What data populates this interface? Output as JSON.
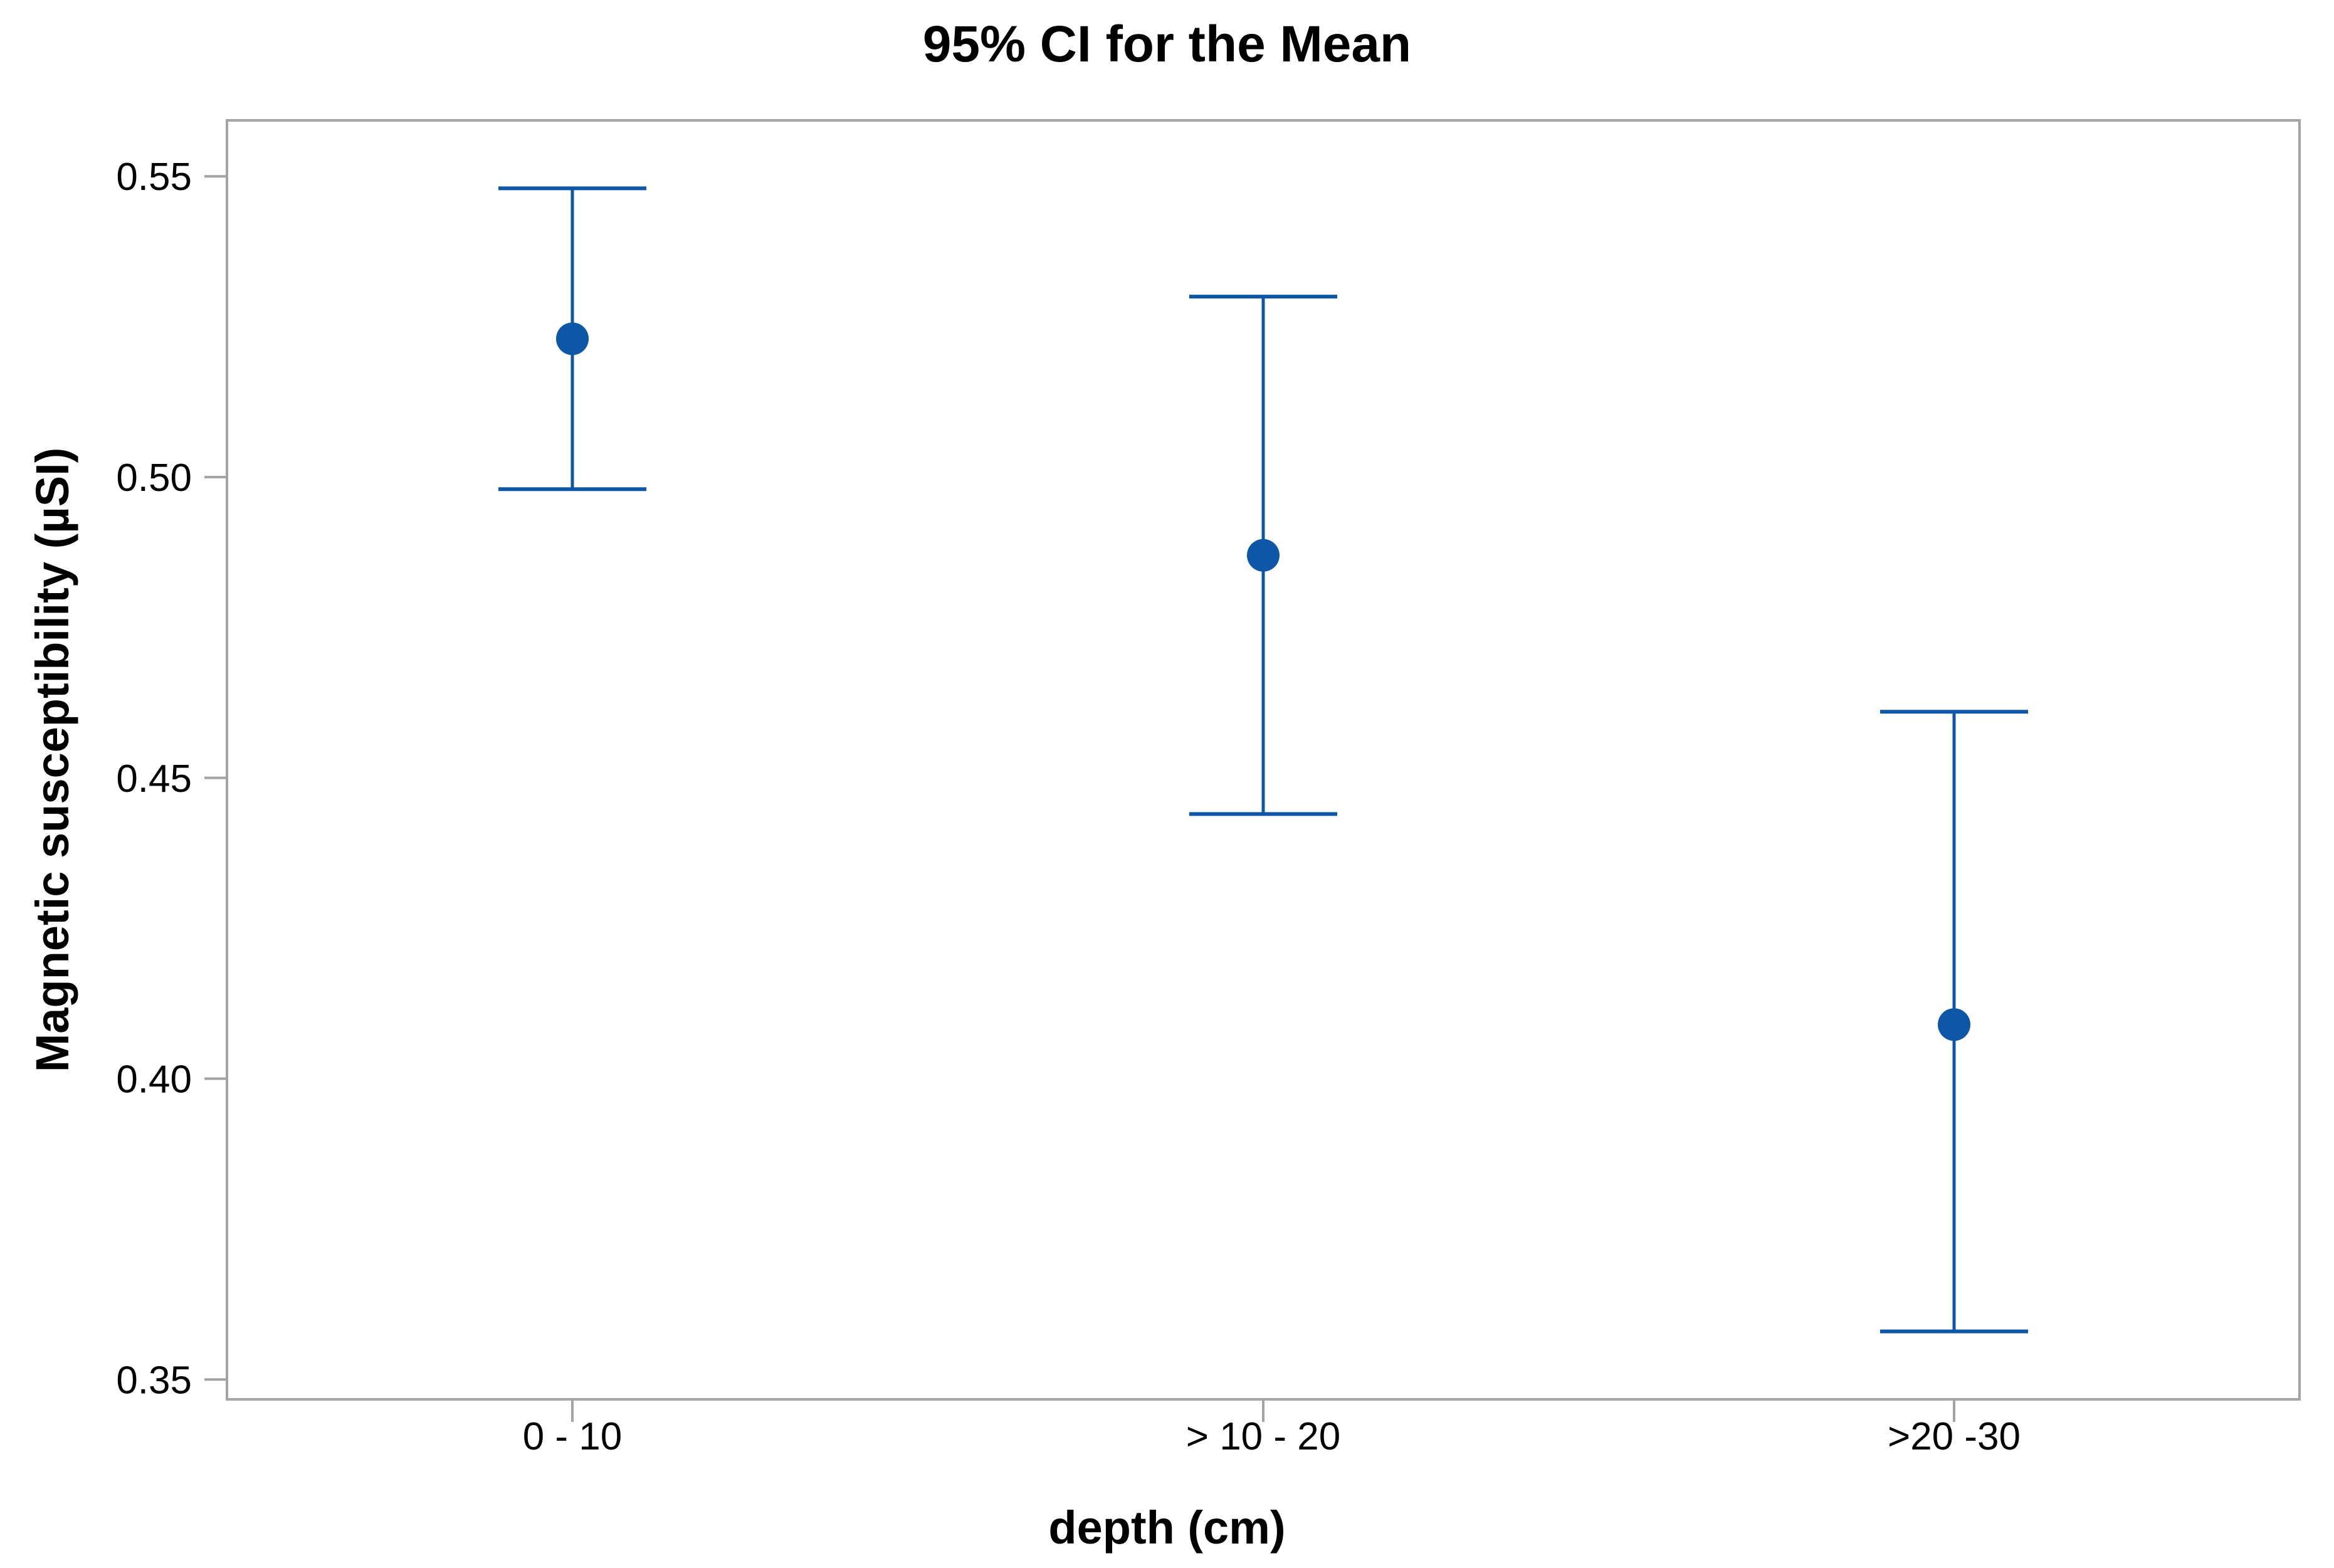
{
  "chart_data": {
    "type": "interval_plot",
    "title": "95% CI for the Mean",
    "xlabel": "depth (cm)",
    "ylabel": "Magnetic susceptibility (µSI)",
    "categories": [
      "0 - 10",
      "> 10 - 20",
      ">20 -30"
    ],
    "series": [
      {
        "name": "95% CI for the Mean",
        "means": [
          0.523,
          0.487,
          0.409
        ],
        "ci_low": [
          0.498,
          0.444,
          0.358
        ],
        "ci_high": [
          0.548,
          0.53,
          0.461
        ]
      }
    ],
    "ylim": [
      0.3467,
      0.5593
    ],
    "yticks": [
      0.55,
      0.5,
      0.45,
      0.4,
      0.35
    ],
    "ytick_labels": [
      "0.55",
      "0.50",
      "0.45",
      "0.40",
      "0.35"
    ],
    "grid": false,
    "legend": "none",
    "colors": {
      "interval": "#0d57a6",
      "frame": "#a3a3a3",
      "text": "#000000",
      "background": "#ffffff"
    }
  }
}
